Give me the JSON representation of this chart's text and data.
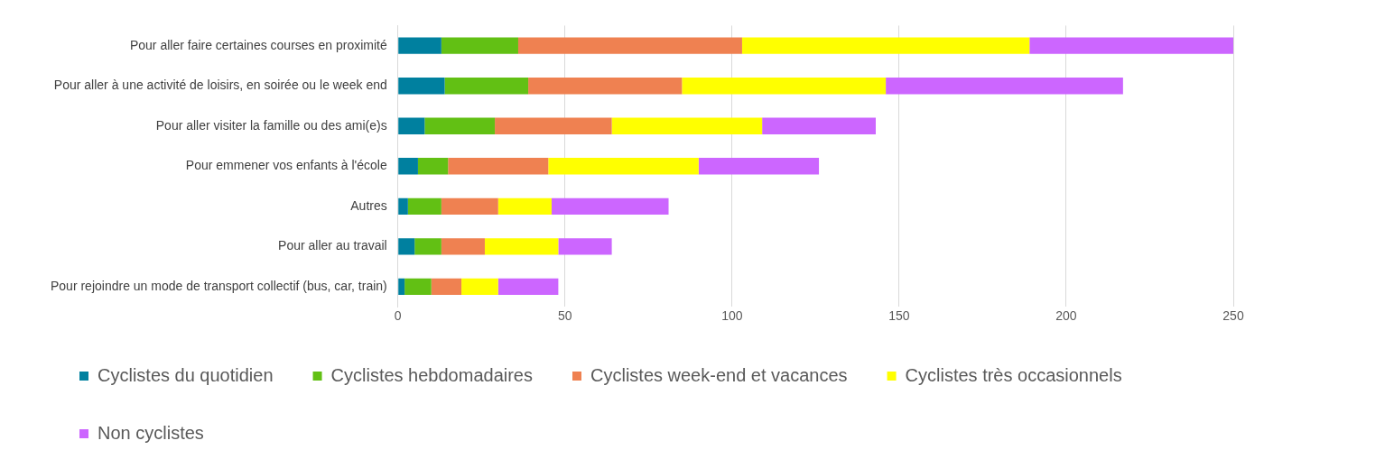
{
  "chart_data": {
    "type": "bar",
    "orientation": "horizontal",
    "stacked": true,
    "categories": [
      "Pour aller faire certaines courses en proximité",
      "Pour aller à une activité de loisirs, en soirée ou le week end",
      "Pour aller visiter la famille ou des ami(e)s",
      "Pour emmener vos enfants à l'école",
      "Autres",
      "Pour aller au travail",
      "Pour rejoindre un mode de transport collectif (bus, car, train)"
    ],
    "series": [
      {
        "name": "Cyclistes du quotidien",
        "color": "#00809f",
        "values": [
          13,
          14,
          8,
          6,
          3,
          5,
          2
        ]
      },
      {
        "name": "Cyclistes hebdomadaires",
        "color": "#62c014",
        "values": [
          23,
          25,
          21,
          9,
          10,
          8,
          8
        ]
      },
      {
        "name": "Cyclistes week-end et vacances",
        "color": "#ef8151",
        "values": [
          67,
          46,
          35,
          30,
          17,
          13,
          9
        ]
      },
      {
        "name": "Cyclistes très occasionnels",
        "color": "#ffff00",
        "values": [
          86,
          61,
          45,
          45,
          16,
          22,
          11
        ]
      },
      {
        "name": "Non cyclistes",
        "color": "#cc66ff",
        "values": [
          61,
          71,
          34,
          36,
          35,
          16,
          18
        ]
      }
    ],
    "xlim": [
      0,
      250
    ],
    "xticks": [
      0,
      50,
      100,
      150,
      200,
      250
    ],
    "grid": "x",
    "legend": "bottom"
  }
}
